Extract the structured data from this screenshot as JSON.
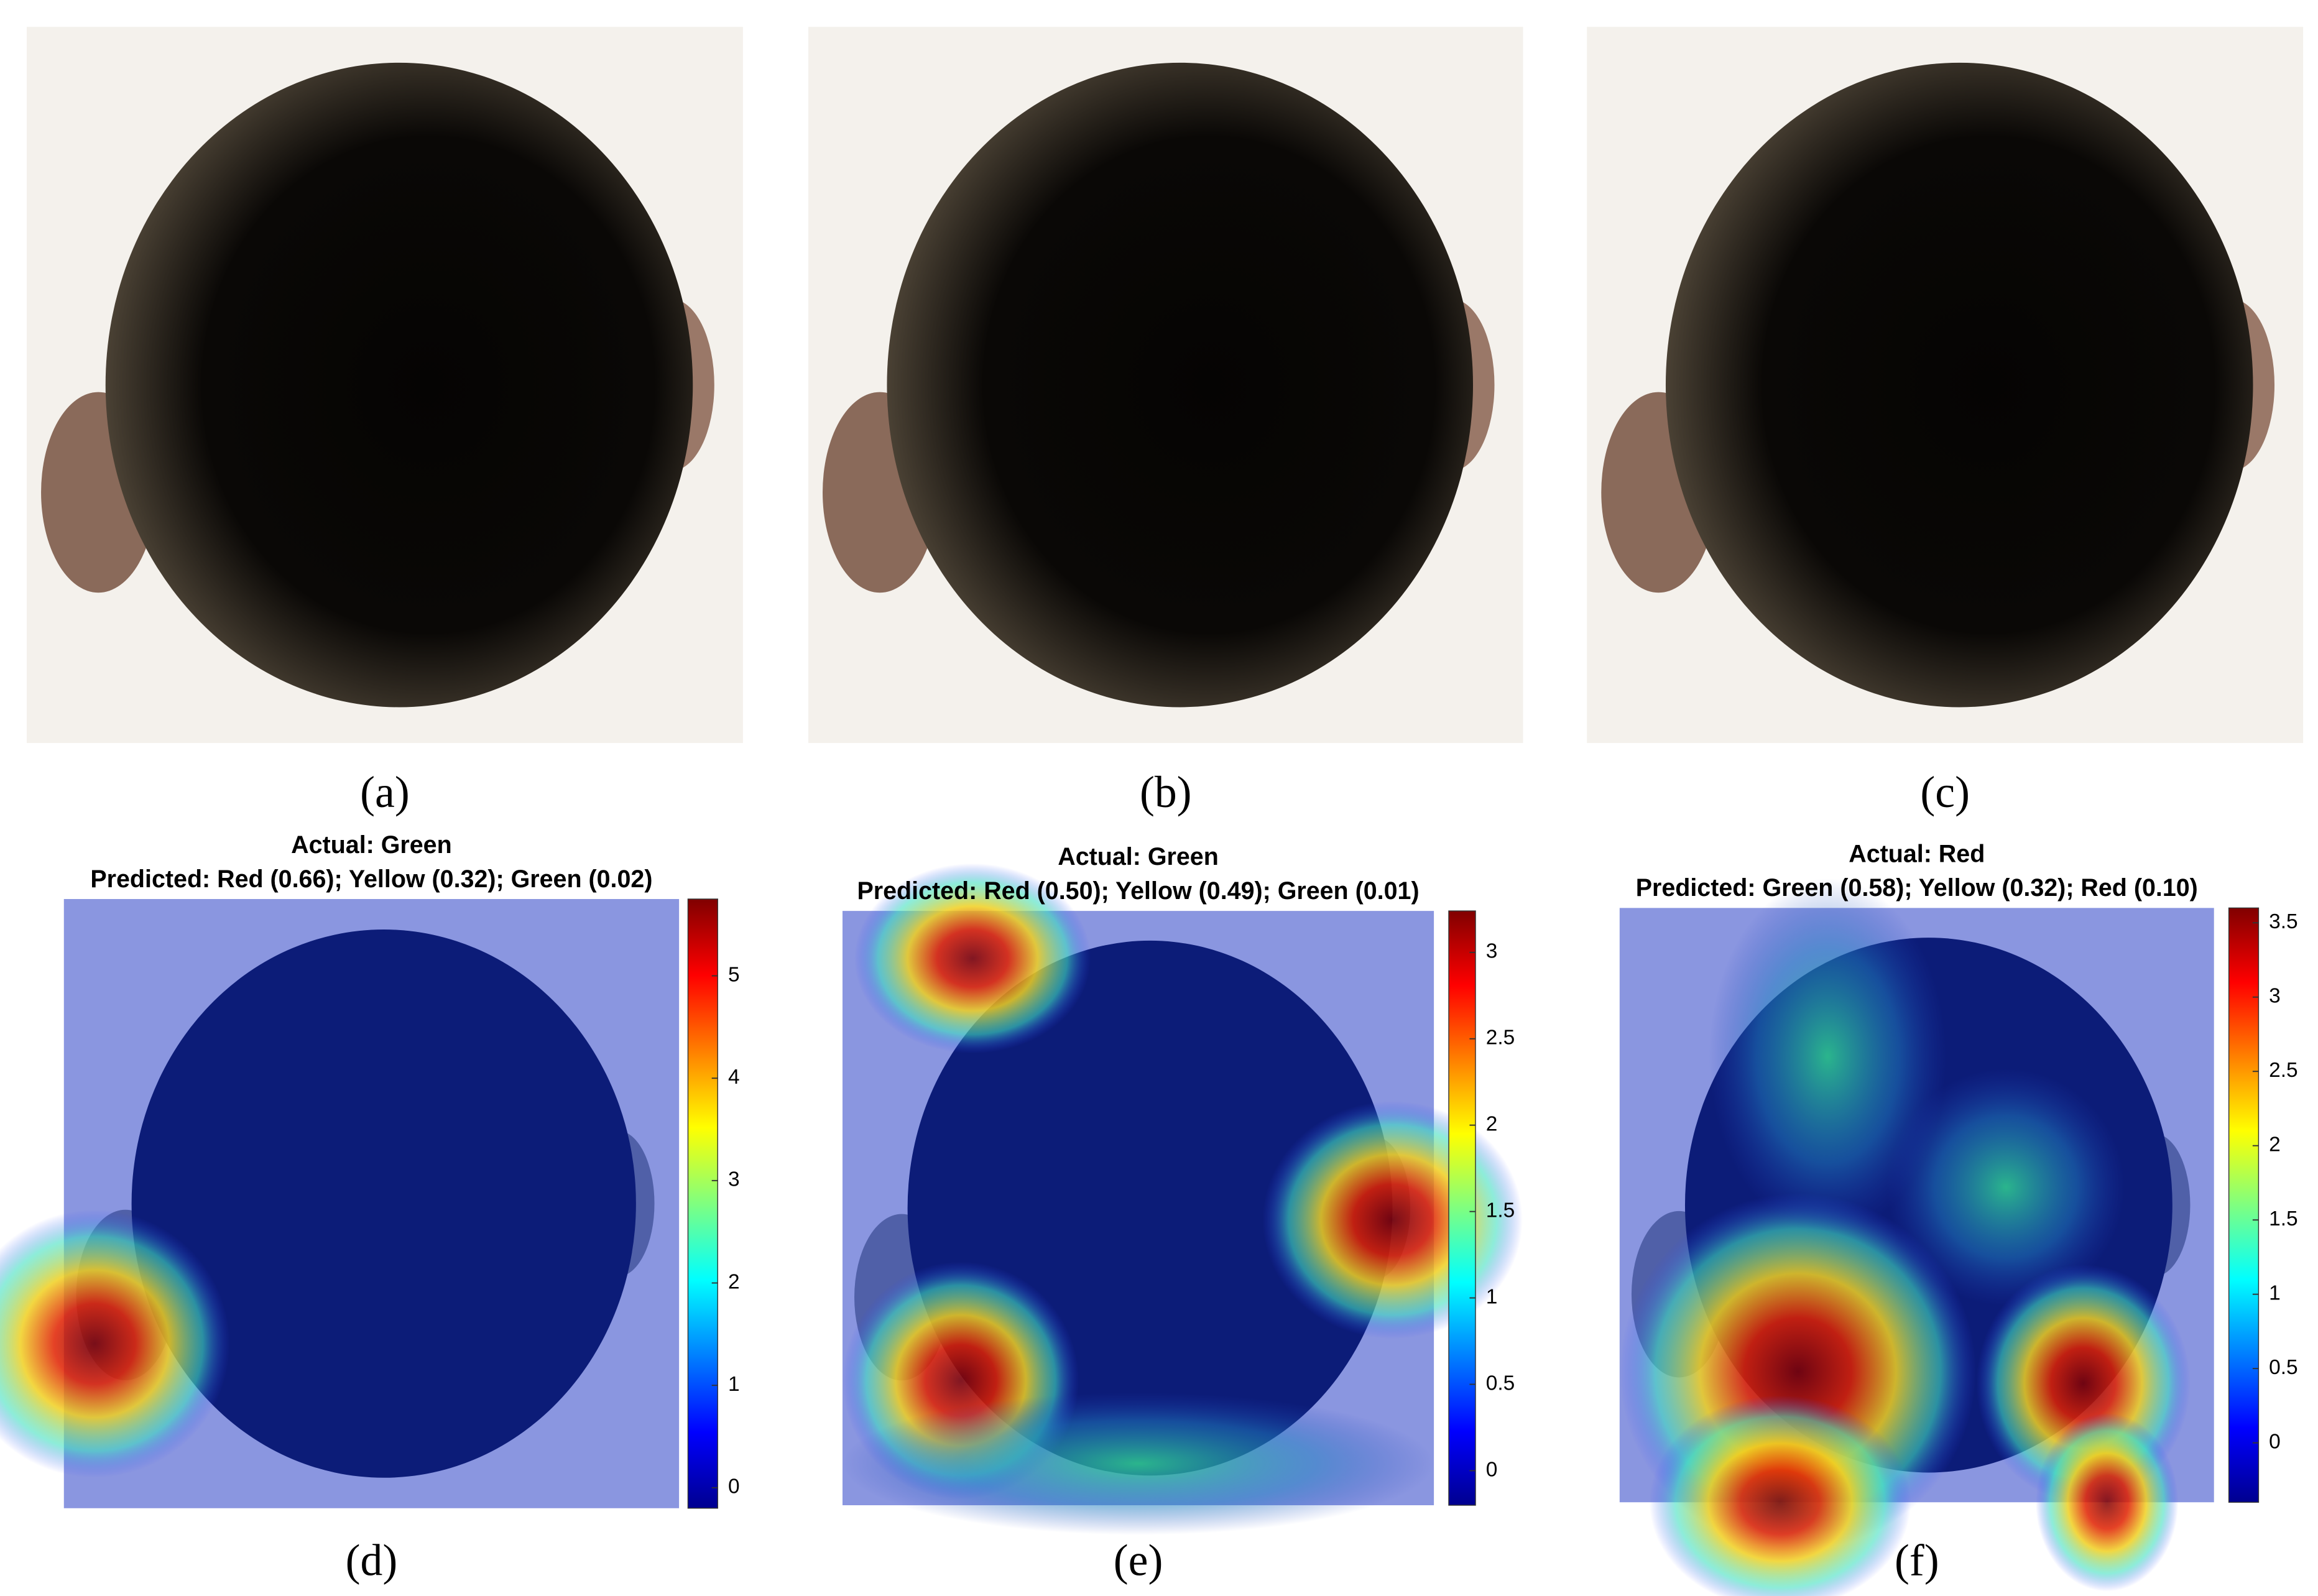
{
  "panels": [
    {
      "label": "(a)"
    },
    {
      "label": "(b)"
    },
    {
      "label": "(c)"
    },
    {
      "label": "(d)",
      "title": [
        "Actual: Green",
        "Predicted: Red (0.66); Yellow (0.32); Green (0.02)"
      ],
      "colorbar": {
        "lim": [
          -0.2,
          5.75
        ],
        "ticks": [
          0,
          1,
          2,
          3,
          4,
          5
        ]
      }
    },
    {
      "label": "(e)",
      "title": [
        "Actual: Green",
        "Predicted: Red (0.50); Yellow (0.49); Green (0.01)"
      ],
      "colorbar": {
        "lim": [
          -0.2,
          3.24
        ],
        "ticks": [
          0,
          0.5,
          1,
          1.5,
          2,
          2.5,
          3
        ]
      }
    },
    {
      "label": "(f)",
      "title": [
        "Actual: Red",
        "Predicted: Green (0.58); Yellow (0.32); Red (0.10)"
      ],
      "colorbar": {
        "lim": [
          -0.4,
          3.6
        ],
        "ticks": [
          0,
          0.5,
          1,
          1.5,
          2,
          2.5,
          3,
          3.5
        ]
      }
    }
  ]
}
